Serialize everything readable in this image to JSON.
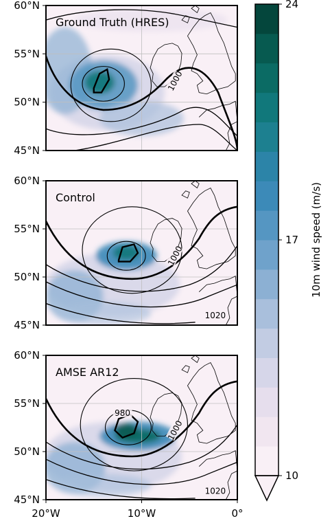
{
  "panels": [
    {
      "title": "Ground Truth (HRES)",
      "contour_labels": [
        {
          "text": "1000",
          "lon": -6.5,
          "lat": 52.2,
          "rot": -62
        }
      ]
    },
    {
      "title": "Control",
      "contour_labels": [
        {
          "text": "1000",
          "lon": -6.5,
          "lat": 52.2,
          "rot": -62
        },
        {
          "text": "1020",
          "lon": -2.3,
          "lat": 46.0,
          "rot": 0
        }
      ]
    },
    {
      "title": "AMSE AR12",
      "contour_labels": [
        {
          "text": "980",
          "lon": -12.0,
          "lat": 54.0,
          "rot": 0
        },
        {
          "text": "1000",
          "lon": -6.5,
          "lat": 52.2,
          "rot": -62
        },
        {
          "text": "1020",
          "lon": -2.3,
          "lat": 45.9,
          "rot": 0
        }
      ]
    }
  ],
  "axes": {
    "lat_ticks": [
      {
        "value": 60,
        "label": "60°N"
      },
      {
        "value": 55,
        "label": "55°N"
      },
      {
        "value": 50,
        "label": "50°N"
      },
      {
        "value": 45,
        "label": "45°N"
      }
    ],
    "lon_ticks": [
      {
        "value": -20,
        "label": "20°W"
      },
      {
        "value": -10,
        "label": "10°W"
      },
      {
        "value": 0,
        "label": "0°"
      }
    ],
    "lon_range": [
      -20,
      0
    ],
    "lat_range": [
      45,
      60
    ]
  },
  "colorbar": {
    "label": "10m wind speed (m/s)",
    "ticks": [
      {
        "value": 24,
        "label": "24"
      },
      {
        "value": 17,
        "label": "17"
      },
      {
        "value": 10,
        "label": "10"
      }
    ],
    "range": [
      10,
      24
    ],
    "extend": "min",
    "colors": [
      "#f9f0f6",
      "#f1e6f0",
      "#e6deed",
      "#d6d6e9",
      "#c2cce3",
      "#a9bfdc",
      "#8cb0d3",
      "#6fa2cb",
      "#5596c2",
      "#3c8ab8",
      "#2c84a8",
      "#1d8090",
      "#11787b",
      "#0b6b64",
      "#075a50",
      "#04463c"
    ]
  }
}
